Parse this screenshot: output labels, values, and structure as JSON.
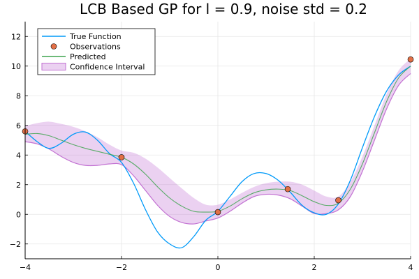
{
  "chart_data": {
    "type": "line",
    "title": "LCB Based GP for l = 0.9, noise std = 0.2",
    "xlim": [
      -4,
      4
    ],
    "ylim": [
      -3,
      13
    ],
    "x_ticks": [
      -4,
      -2,
      0,
      2,
      4
    ],
    "y_ticks": [
      -2,
      0,
      2,
      4,
      6,
      8,
      10,
      12
    ],
    "x_tick_labels": [
      "−4",
      "−2",
      "0",
      "2",
      "4"
    ],
    "y_tick_labels": [
      "−2",
      "0",
      "2",
      "4",
      "6",
      "8",
      "10",
      "12"
    ],
    "grid": true,
    "legend_position": "top-left",
    "colors": {
      "true_function": "#009af9",
      "observations": "#e26f46",
      "predicted": "#3da44d",
      "confidence": "#c271d2"
    },
    "series": [
      {
        "name": "True Function",
        "kind": "line",
        "x": [
          -4.0,
          -3.75,
          -3.5,
          -3.25,
          -3.0,
          -2.75,
          -2.5,
          -2.25,
          -2.0,
          -1.75,
          -1.5,
          -1.25,
          -1.0,
          -0.75,
          -0.5,
          -0.25,
          0.0,
          0.25,
          0.5,
          0.75,
          1.0,
          1.25,
          1.5,
          1.75,
          2.0,
          2.25,
          2.5,
          2.75,
          3.0,
          3.25,
          3.5,
          3.75,
          4.0
        ],
        "y": [
          5.6,
          4.9,
          4.45,
          4.8,
          5.4,
          5.55,
          5.0,
          4.1,
          3.5,
          2.1,
          0.3,
          -1.2,
          -2.0,
          -2.25,
          -1.5,
          -0.4,
          0.2,
          1.2,
          2.2,
          2.75,
          2.75,
          2.3,
          1.5,
          0.6,
          0.1,
          0.0,
          0.7,
          2.3,
          4.5,
          6.6,
          8.3,
          9.4,
          10.0
        ]
      },
      {
        "name": "Observations",
        "kind": "scatter",
        "x": [
          -4.0,
          -2.0,
          0.0,
          1.45,
          2.5,
          4.0
        ],
        "y": [
          5.6,
          3.85,
          0.15,
          1.7,
          0.95,
          10.45
        ]
      },
      {
        "name": "Predicted",
        "kind": "line",
        "x": [
          -4.0,
          -3.75,
          -3.5,
          -3.25,
          -3.0,
          -2.75,
          -2.5,
          -2.25,
          -2.0,
          -1.75,
          -1.5,
          -1.25,
          -1.0,
          -0.75,
          -0.5,
          -0.25,
          0.0,
          0.25,
          0.5,
          0.75,
          1.0,
          1.25,
          1.5,
          1.75,
          2.0,
          2.25,
          2.5,
          2.75,
          3.0,
          3.25,
          3.5,
          3.75,
          4.0
        ],
        "y": [
          5.4,
          5.45,
          5.3,
          5.0,
          4.7,
          4.45,
          4.25,
          4.05,
          3.85,
          3.4,
          2.7,
          1.85,
          1.1,
          0.55,
          0.2,
          0.15,
          0.2,
          0.55,
          1.05,
          1.45,
          1.65,
          1.7,
          1.6,
          1.25,
          0.85,
          0.6,
          0.75,
          1.7,
          3.4,
          5.5,
          7.6,
          9.2,
          10.0
        ]
      },
      {
        "name": "Confidence Interval",
        "kind": "band",
        "x": [
          -4.0,
          -3.75,
          -3.5,
          -3.25,
          -3.0,
          -2.75,
          -2.5,
          -2.25,
          -2.0,
          -1.75,
          -1.5,
          -1.25,
          -1.0,
          -0.75,
          -0.5,
          -0.25,
          0.0,
          0.25,
          0.5,
          0.75,
          1.0,
          1.25,
          1.5,
          1.75,
          2.0,
          2.25,
          2.5,
          2.75,
          3.0,
          3.25,
          3.5,
          3.75,
          4.0
        ],
        "lower": [
          4.9,
          4.75,
          4.4,
          3.9,
          3.5,
          3.3,
          3.3,
          3.4,
          3.35,
          2.6,
          1.6,
          0.6,
          -0.15,
          -0.55,
          -0.65,
          -0.45,
          -0.25,
          0.2,
          0.75,
          1.2,
          1.35,
          1.3,
          1.05,
          0.55,
          0.05,
          0.05,
          0.3,
          1.2,
          2.9,
          5.0,
          7.1,
          8.7,
          9.5
        ]
      },
      {
        "name": "Confidence Interval upper",
        "kind": "band-upper",
        "x": [
          -4.0,
          -3.75,
          -3.5,
          -3.25,
          -3.0,
          -2.75,
          -2.5,
          -2.25,
          -2.0,
          -1.75,
          -1.5,
          -1.25,
          -1.0,
          -0.75,
          -0.5,
          -0.25,
          0.0,
          0.25,
          0.5,
          0.75,
          1.0,
          1.25,
          1.5,
          1.75,
          2.0,
          2.25,
          2.5,
          2.75,
          3.0,
          3.25,
          3.5,
          3.75,
          4.0
        ],
        "upper": [
          5.95,
          6.15,
          6.25,
          6.1,
          5.9,
          5.6,
          5.2,
          4.7,
          4.3,
          4.15,
          3.75,
          3.15,
          2.45,
          1.75,
          1.1,
          0.65,
          0.65,
          1.0,
          1.45,
          1.85,
          2.1,
          2.2,
          2.2,
          2.0,
          1.6,
          1.2,
          1.2,
          2.2,
          3.9,
          6.0,
          8.1,
          9.7,
          10.5
        ]
      }
    ],
    "legend": [
      {
        "label": "True Function",
        "symbol": "line",
        "color": "#009af9"
      },
      {
        "label": "Observations",
        "symbol": "marker",
        "color": "#e26f46"
      },
      {
        "label": "Predicted",
        "symbol": "line",
        "color": "#3da44d"
      },
      {
        "label": "Confidence Interval",
        "symbol": "band",
        "color": "#c271d2"
      }
    ]
  }
}
